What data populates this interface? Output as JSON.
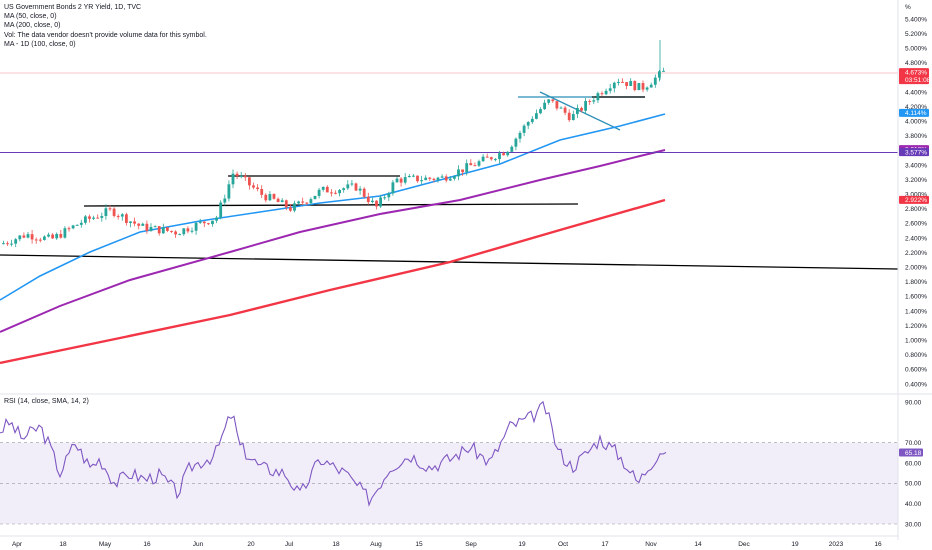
{
  "legend": {
    "title": "US Government Bonds 2 YR Yield, 1D, TVC",
    "ma50": "MA (50, close, 0)",
    "ma200": "MA (200, close, 0)",
    "vol": "Vol: The data vendor doesn't provide volume data for this symbol.",
    "ma100": "MA - 1D (100, close, 0)"
  },
  "rsi_legend": "RSI (14, close, SMA, 14, 2)",
  "price_axis": {
    "unit": "%",
    "ticks": [
      "5.400%",
      "5.200%",
      "5.000%",
      "4.800%",
      "4.400%",
      "4.200%",
      "4.000%",
      "3.800%",
      "3.400%",
      "3.200%",
      "3.000%",
      "2.800%",
      "2.600%",
      "2.400%",
      "2.200%",
      "2.000%",
      "1.800%",
      "1.600%",
      "1.400%",
      "1.200%",
      "1.000%",
      "0.800%",
      "0.600%",
      "0.400%"
    ],
    "badges": [
      {
        "text": "4.673%",
        "sub": "03:51:08",
        "value": 4.673,
        "color": "#f23645"
      },
      {
        "text": "4.114%",
        "value": 4.114,
        "color": "#2196f3"
      },
      {
        "text": "3.618%",
        "value": 3.618,
        "color": "#9c27b0"
      },
      {
        "text": "3.577%",
        "value": 3.577,
        "color": "#673ab7"
      },
      {
        "text": "2.922%",
        "value": 2.922,
        "color": "#f23645"
      }
    ]
  },
  "rsi_axis": {
    "ticks": [
      "90.00",
      "70.00",
      "60.00",
      "50.00",
      "40.00",
      "30.00"
    ],
    "badge": {
      "text": "65.18",
      "value": 65.18,
      "color": "#7e57c2"
    }
  },
  "time_axis": [
    "Apr",
    "18",
    "May",
    "16",
    "Jun",
    "20",
    "Jul",
    "18",
    "Aug",
    "15",
    "Sep",
    "19",
    "Oct",
    "17",
    "Nov",
    "14",
    "Dec",
    "19",
    "2023",
    "16"
  ],
  "colors": {
    "up": "#26a69a",
    "down": "#ef5350",
    "ma50": "#2196f3",
    "ma100": "#9c27b0",
    "ma200": "#f23645",
    "rsi": "#7e57c2",
    "trend": "#000000"
  },
  "chart_data": [
    {
      "type": "candlestick",
      "title": "US Government Bonds 2 YR Yield, 1D, TVC",
      "y_unit": "%",
      "ylim": [
        0.3,
        5.5
      ],
      "x_range": [
        "Apr",
        "16"
      ],
      "series": [
        {
          "name": "MA (50, close, 0)",
          "x": [
            "Apr",
            "May",
            "Jun",
            "Jul",
            "Aug",
            "Sep",
            "Oct",
            "Nov"
          ],
          "values": [
            1.45,
            2.0,
            2.55,
            2.77,
            2.88,
            3.22,
            3.6,
            4.11
          ]
        },
        {
          "name": "MA - 1D (100, close, 0)",
          "x": [
            "Apr",
            "May",
            "Jun",
            "Jul",
            "Aug",
            "Sep",
            "Oct",
            "Nov"
          ],
          "values": [
            1.1,
            1.5,
            1.9,
            2.3,
            2.58,
            2.85,
            3.25,
            3.62
          ]
        },
        {
          "name": "MA (200, close, 0)",
          "x": [
            "Apr",
            "May",
            "Jun",
            "Jul",
            "Aug",
            "Sep",
            "Oct",
            "Nov"
          ],
          "values": [
            0.65,
            0.9,
            1.15,
            1.55,
            1.85,
            2.15,
            2.55,
            2.92
          ]
        }
      ],
      "close_path": {
        "x": [
          "Apr",
          "18",
          "May",
          "16",
          "Jun",
          "20",
          "Jul",
          "18",
          "Aug",
          "15",
          "Sep",
          "19",
          "Oct",
          "17",
          "Nov"
        ],
        "values": [
          2.35,
          2.52,
          2.72,
          2.55,
          2.48,
          3.2,
          3.05,
          3.1,
          3.0,
          3.2,
          3.35,
          3.9,
          4.1,
          4.5,
          4.67
        ]
      }
    },
    {
      "type": "line",
      "title": "RSI (14, close, SMA, 14, 2)",
      "ylim": [
        30,
        90
      ],
      "bands": [
        70,
        50,
        30
      ],
      "series": [
        {
          "name": "RSI (14, close, SMA, 14, 2)",
          "x": [
            "Apr",
            "18",
            "May",
            "16",
            "Jun",
            "20",
            "Jul",
            "18",
            "Aug",
            "15",
            "Sep",
            "19",
            "Oct",
            "17",
            "Nov"
          ],
          "values": [
            70,
            58,
            62,
            52,
            58,
            80,
            55,
            52,
            45,
            65,
            60,
            85,
            65,
            70,
            65.18
          ]
        }
      ]
    }
  ]
}
